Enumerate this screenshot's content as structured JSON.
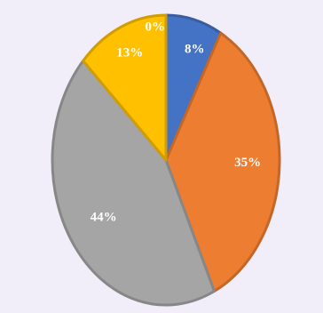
{
  "chart_data": {
    "type": "pie",
    "start_angle_deg": 0,
    "direction": "clockwise",
    "exploded": false,
    "slices": [
      {
        "label": "0%",
        "value": 0,
        "color": "#4472c4"
      },
      {
        "label": "8%",
        "value": 8,
        "color": "#4472c4"
      },
      {
        "label": "35%",
        "value": 35,
        "color": "#ed7d31"
      },
      {
        "label": "44%",
        "value": 44,
        "color": "#a5a5a5"
      },
      {
        "label": "13%",
        "value": 13,
        "color": "#ffc000"
      }
    ]
  }
}
